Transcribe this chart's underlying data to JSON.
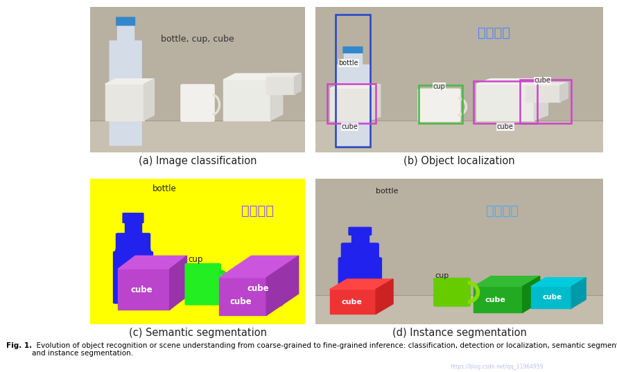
{
  "caption_bold": "Fig. 1.",
  "caption_text": "  Evolution of object recognition or scene understanding from coarse-grained to fine-grained inference: classification, detection or localization, semantic segmentation,\nand instance segmentation.",
  "watermark": "https://blog.csdn.net/qq_11964959",
  "panel_labels": [
    "(a) Image classification",
    "(b) Object localization",
    "(c) Semantic segmentation",
    "(d) Instance segmentation"
  ],
  "panel_a_text": "bottle, cup, cube",
  "panel_b_title": "目标检测",
  "panel_c_title": "语义分割",
  "panel_d_title": "实例分割",
  "bg_color": "#ffffff",
  "panel_bg_photo": "#b8b0a0",
  "panel_bg_c": "#ffff00",
  "chinese_color_b": "#4488ff",
  "chinese_color_c": "#8844ff",
  "chinese_color_d": "#44aaff",
  "figsize": [
    8.9,
    5.37
  ],
  "dpi": 100
}
